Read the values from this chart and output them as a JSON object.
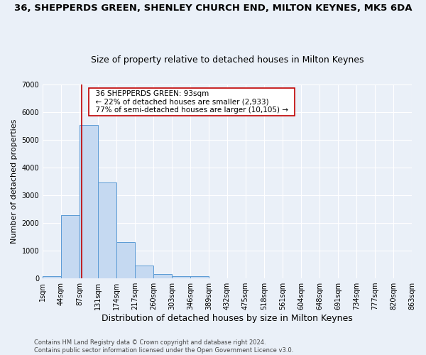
{
  "title": "36, SHEPPERDS GREEN, SHENLEY CHURCH END, MILTON KEYNES, MK5 6DA",
  "subtitle": "Size of property relative to detached houses in Milton Keynes",
  "xlabel": "Distribution of detached houses by size in Milton Keynes",
  "ylabel": "Number of detached properties",
  "bar_values": [
    75,
    2280,
    5520,
    3450,
    1310,
    470,
    160,
    85,
    85,
    0,
    0,
    0,
    0,
    0,
    0,
    0,
    0,
    0,
    0,
    0
  ],
  "bar_color": "#c5d9f1",
  "bar_edge_color": "#5b9bd5",
  "tick_labels": [
    "1sqm",
    "44sqm",
    "87sqm",
    "131sqm",
    "174sqm",
    "217sqm",
    "260sqm",
    "303sqm",
    "346sqm",
    "389sqm",
    "432sqm",
    "475sqm",
    "518sqm",
    "561sqm",
    "604sqm",
    "648sqm",
    "691sqm",
    "734sqm",
    "777sqm",
    "820sqm",
    "863sqm"
  ],
  "ylim": [
    0,
    7000
  ],
  "yticks": [
    0,
    1000,
    2000,
    3000,
    4000,
    5000,
    6000,
    7000
  ],
  "vline_x": 2.12,
  "vline_color": "#c00000",
  "annotation_text": "  36 SHEPPERDS GREEN: 93sqm  \n  ← 22% of detached houses are smaller (2,933)  \n  77% of semi-detached houses are larger (10,105) →  ",
  "annotation_box_color": "#ffffff",
  "annotation_box_edge": "#c00000",
  "footer": "Contains HM Land Registry data © Crown copyright and database right 2024.\nContains public sector information licensed under the Open Government Licence v3.0.",
  "bg_color": "#eaf0f8",
  "grid_color": "#ffffff",
  "title_fontsize": 9.5,
  "subtitle_fontsize": 9,
  "xlabel_fontsize": 9,
  "ylabel_fontsize": 8,
  "tick_fontsize": 7,
  "annotation_fontsize": 7.5,
  "footer_fontsize": 6
}
